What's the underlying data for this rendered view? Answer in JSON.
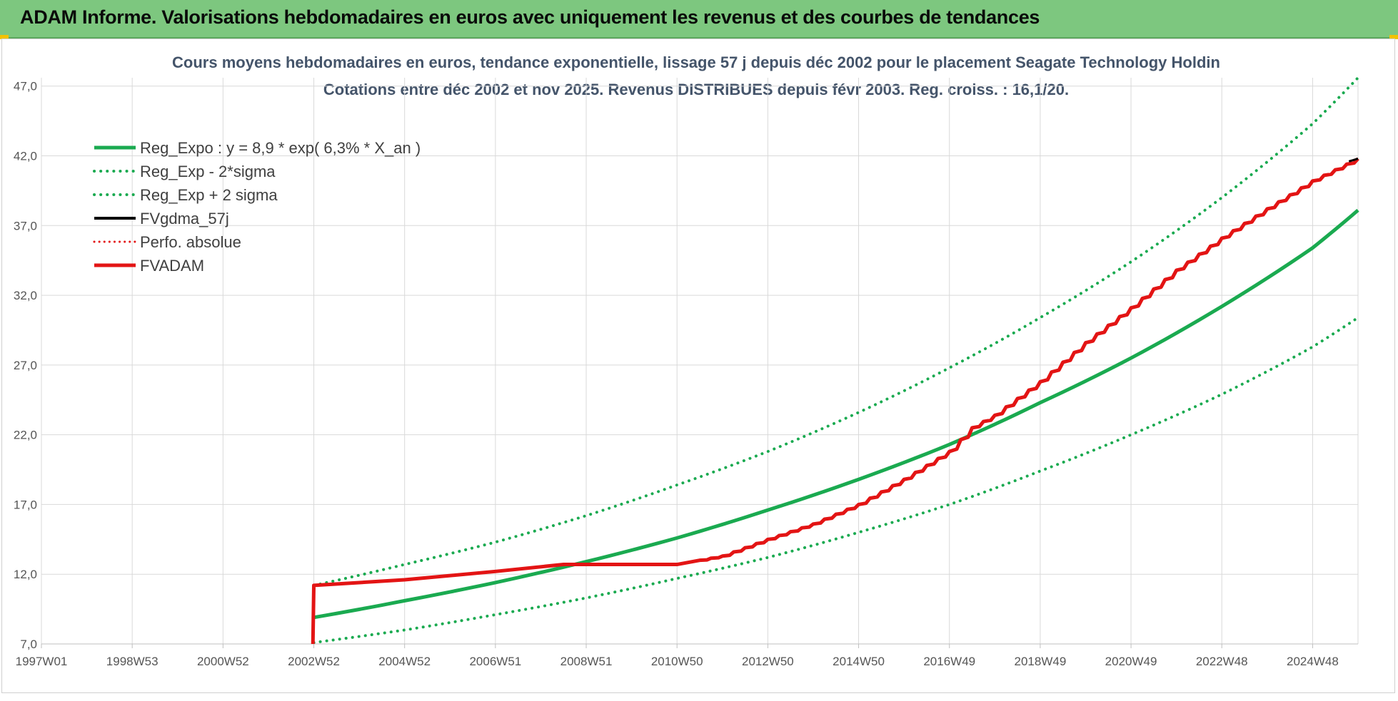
{
  "banner": {
    "title": "ADAM Informe. Valorisations hebdomadaires en euros avec uniquement les revenus et des courbes de tendances"
  },
  "chart_data": {
    "type": "line",
    "title_line1": "Cours moyens hebdomadaires en euros, tendance exponentielle, lissage 57 j depuis déc 2002 pour le placement Seagate Technology Holdin",
    "title_line2": "Cotations entre déc 2002 et nov 2025. Revenus DISTRIBUES depuis févr 2003. Reg. croiss. : 16,1/20.",
    "x_tick_labels": [
      "1997W01",
      "1998W53",
      "2000W52",
      "2002W52",
      "2004W52",
      "2006W51",
      "2008W51",
      "2010W50",
      "2012W50",
      "2014W50",
      "2016W49",
      "2018W49",
      "2020W49",
      "2022W48",
      "2024W48"
    ],
    "x_ticks": [
      1997.0,
      1999.0,
      2001.0,
      2003.0,
      2005.0,
      2007.0,
      2009.0,
      2011.0,
      2013.0,
      2015.0,
      2017.0,
      2019.0,
      2021.0,
      2023.0,
      2025.0
    ],
    "xlim": [
      1997.0,
      2026.0
    ],
    "y_tick_labels": [
      "7,0",
      "12,0",
      "17,0",
      "22,0",
      "27,0",
      "32,0",
      "37,0",
      "42,0",
      "47,0"
    ],
    "y_ticks": [
      7,
      12,
      17,
      22,
      27,
      32,
      37,
      42,
      47
    ],
    "ylim": [
      7,
      47.6
    ],
    "grid": true,
    "legend_position": "top-left",
    "colors": {
      "reg_expo": "#1aaa50",
      "sigma": "#1aaa50",
      "fvgdma": "#000000",
      "perfo": "#e31414",
      "fvadam": "#e31414",
      "grid": "#d9d9d9",
      "axis_text": "#555555",
      "title_text": "#44546a"
    },
    "series": [
      {
        "name": "Reg_Expo : y = 8,9 * exp( 6,3% *  X_an )",
        "style": "solid-thick",
        "x": [
          2003.0,
          2005.0,
          2007.0,
          2009.0,
          2011.0,
          2013.0,
          2015.0,
          2017.0,
          2019.0,
          2021.0,
          2023.0,
          2025.0,
          2026.0
        ],
        "values": [
          8.9,
          10.1,
          11.4,
          12.9,
          14.6,
          16.6,
          18.8,
          21.3,
          24.3,
          27.5,
          31.2,
          35.4,
          38.1
        ]
      },
      {
        "name": "Reg_Exp - 2*sigma",
        "style": "dotted",
        "x": [
          2003.0,
          2005.0,
          2007.0,
          2009.0,
          2011.0,
          2013.0,
          2015.0,
          2017.0,
          2019.0,
          2021.0,
          2023.0,
          2025.0,
          2026.0
        ],
        "values": [
          7.1,
          8.0,
          9.1,
          10.3,
          11.7,
          13.2,
          15.0,
          17.0,
          19.4,
          22.0,
          24.9,
          28.3,
          30.4
        ]
      },
      {
        "name": "Reg_Exp + 2 sigma",
        "style": "dotted",
        "x": [
          2003.0,
          2005.0,
          2007.0,
          2009.0,
          2011.0,
          2013.0,
          2015.0,
          2017.0,
          2019.0,
          2021.0,
          2023.0,
          2025.0,
          2026.0
        ],
        "values": [
          11.2,
          12.7,
          14.3,
          16.2,
          18.4,
          20.8,
          23.6,
          26.8,
          30.4,
          34.4,
          39.0,
          44.3,
          47.6
        ]
      },
      {
        "name": "FVgdma_57j",
        "style": "solid-thin",
        "x": [
          2025.8,
          2026.0
        ],
        "values": [
          41.6,
          41.8
        ]
      },
      {
        "name": "Perfo. absolue",
        "style": "dotted-red",
        "x": [],
        "values": []
      },
      {
        "name": "FVADAM",
        "style": "solid-thick-red",
        "x": [
          2002.98,
          2003.0,
          2005.0,
          2007.0,
          2008.5,
          2010.0,
          2011.0,
          2011.5,
          2012.0,
          2013.0,
          2014.0,
          2015.0,
          2016.0,
          2017.0,
          2017.5,
          2018.0,
          2019.0,
          2020.0,
          2021.0,
          2022.0,
          2023.0,
          2024.0,
          2025.0,
          2026.0
        ],
        "values": [
          7.0,
          11.2,
          11.6,
          12.2,
          12.7,
          12.7,
          12.7,
          13.0,
          13.3,
          14.5,
          15.6,
          17.0,
          18.8,
          20.8,
          22.5,
          23.4,
          25.8,
          28.6,
          31.1,
          33.8,
          36.1,
          38.2,
          40.2,
          41.8
        ]
      }
    ]
  }
}
